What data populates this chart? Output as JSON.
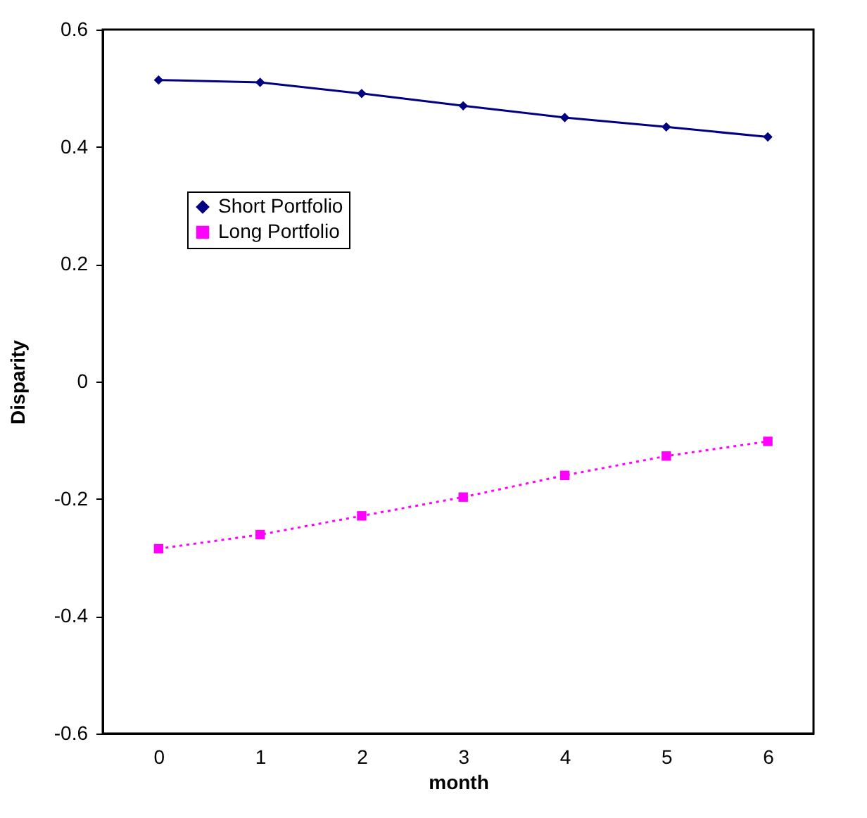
{
  "chart_data": {
    "type": "line",
    "xlabel": "month",
    "ylabel": "Disparity",
    "categories": [
      "0",
      "1",
      "2",
      "3",
      "4",
      "5",
      "6"
    ],
    "series": [
      {
        "name": "Short Portfolio",
        "color": "#000080",
        "marker": "diamond",
        "line_style": "solid",
        "values": [
          0.514,
          0.51,
          0.491,
          0.47,
          0.45,
          0.434,
          0.417
        ]
      },
      {
        "name": "Long Portfolio",
        "color": "#ff00ff",
        "marker": "square",
        "line_style": "dotted",
        "values": [
          -0.285,
          -0.261,
          -0.229,
          -0.197,
          -0.16,
          -0.127,
          -0.102
        ]
      }
    ],
    "ylim": [
      -0.6,
      0.6
    ],
    "yticks": [
      -0.6,
      -0.4,
      -0.2,
      0,
      0.2,
      0.4,
      0.6
    ],
    "grid": false,
    "legend": "top left"
  }
}
